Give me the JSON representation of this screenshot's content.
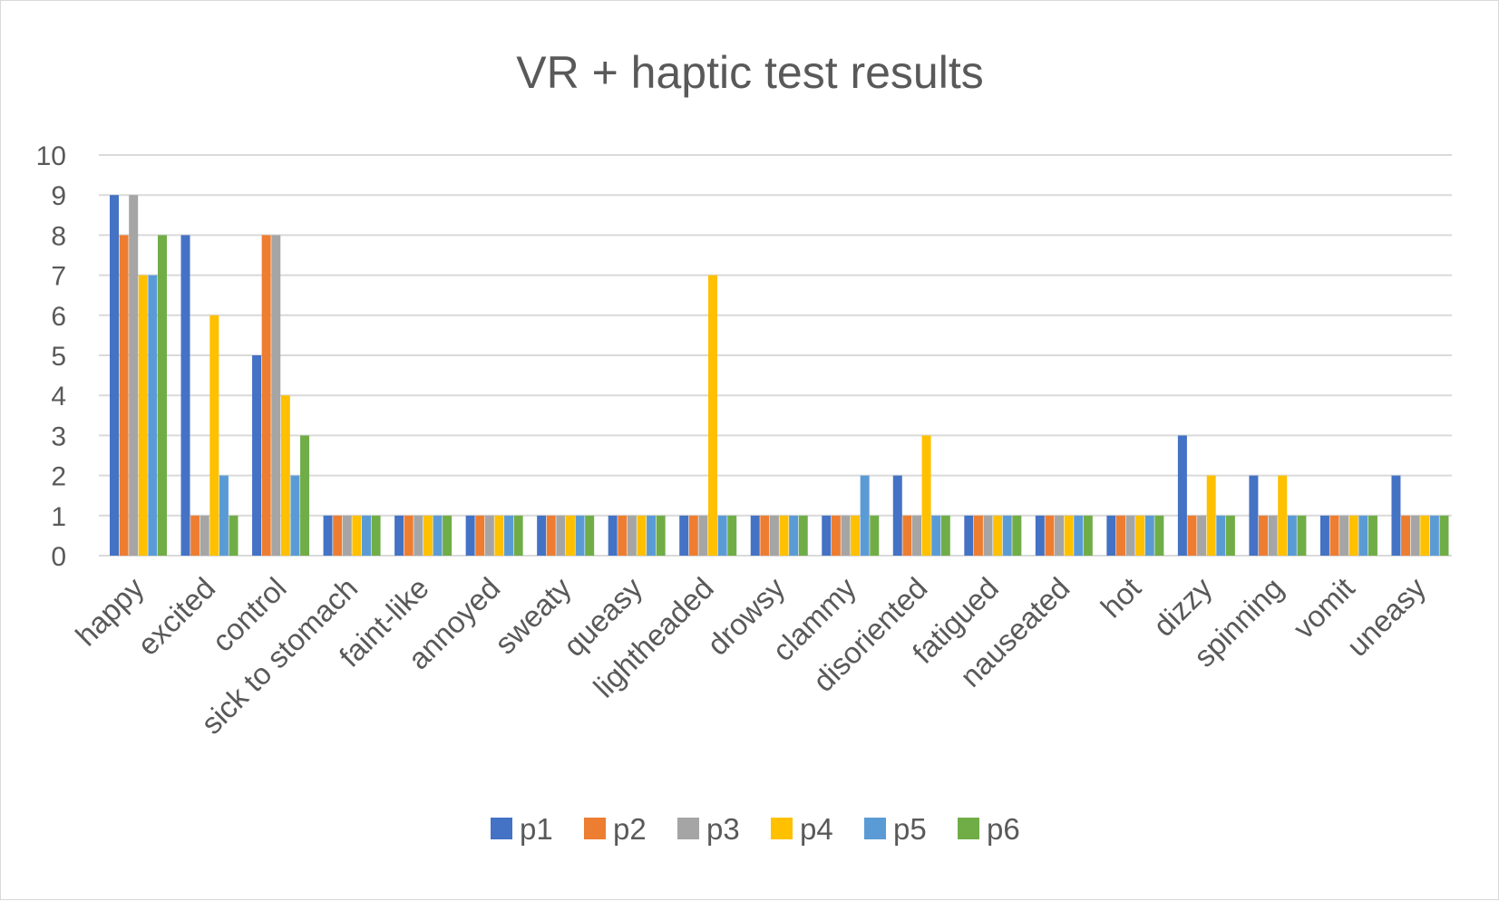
{
  "chart_data": {
    "type": "bar",
    "title": "VR + haptic test results",
    "xlabel": "",
    "ylabel": "",
    "ylim": [
      0,
      10
    ],
    "yticks": [
      0,
      1,
      2,
      3,
      4,
      5,
      6,
      7,
      8,
      9,
      10
    ],
    "grid": true,
    "legend_position": "bottom",
    "categories": [
      "happy",
      "excited",
      "control",
      "sick to stomach",
      "faint-like",
      "annoyed",
      "sweaty",
      "queasy",
      "lightheaded",
      "drowsy",
      "clammy",
      "disoriented",
      "fatigued",
      "nauseated",
      "hot",
      "dizzy",
      "spinning",
      "vomit",
      "uneasy"
    ],
    "series": [
      {
        "name": "p1",
        "color": "#4472C4",
        "values": [
          9,
          8,
          5,
          1,
          1,
          1,
          1,
          1,
          1,
          1,
          1,
          2,
          1,
          1,
          1,
          3,
          2,
          1,
          2
        ]
      },
      {
        "name": "p2",
        "color": "#ED7D31",
        "values": [
          8,
          1,
          8,
          1,
          1,
          1,
          1,
          1,
          1,
          1,
          1,
          1,
          1,
          1,
          1,
          1,
          1,
          1,
          1
        ]
      },
      {
        "name": "p3",
        "color": "#A5A5A5",
        "values": [
          9,
          1,
          8,
          1,
          1,
          1,
          1,
          1,
          1,
          1,
          1,
          1,
          1,
          1,
          1,
          1,
          1,
          1,
          1
        ]
      },
      {
        "name": "p4",
        "color": "#FFC000",
        "values": [
          7,
          6,
          4,
          1,
          1,
          1,
          1,
          1,
          7,
          1,
          1,
          3,
          1,
          1,
          1,
          2,
          2,
          1,
          1
        ]
      },
      {
        "name": "p5",
        "color": "#5B9BD5",
        "values": [
          7,
          2,
          2,
          1,
          1,
          1,
          1,
          1,
          1,
          1,
          2,
          1,
          1,
          1,
          1,
          1,
          1,
          1,
          1
        ]
      },
      {
        "name": "p6",
        "color": "#70AD47",
        "values": [
          8,
          1,
          3,
          1,
          1,
          1,
          1,
          1,
          1,
          1,
          1,
          1,
          1,
          1,
          1,
          1,
          1,
          1,
          1
        ]
      }
    ]
  }
}
